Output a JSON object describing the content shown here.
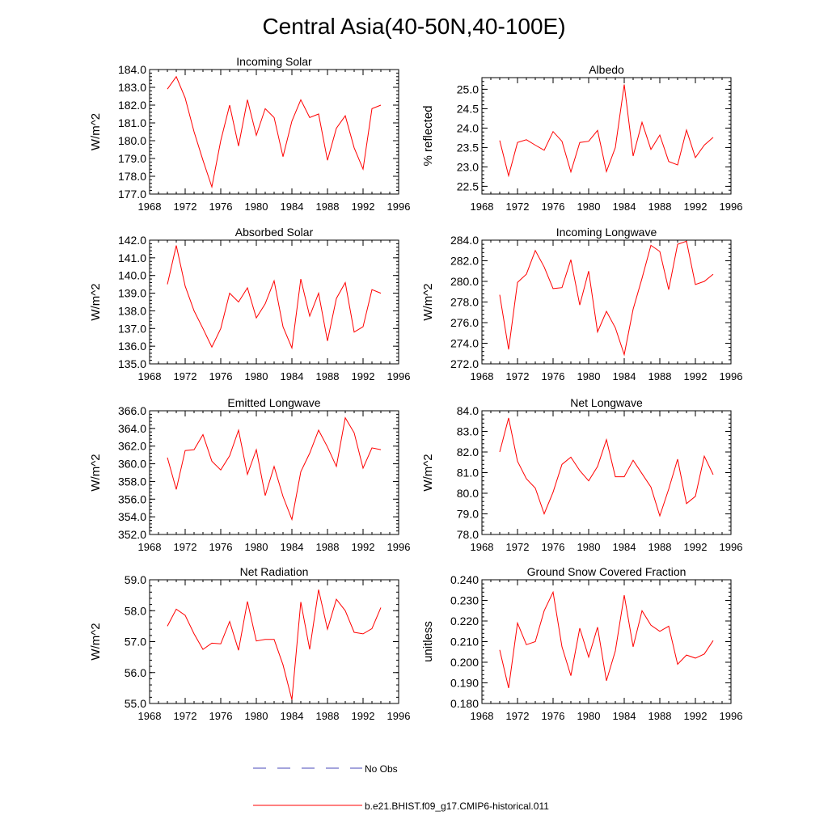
{
  "figure": {
    "title": "Central Asia(40-50N,40-100E)",
    "colors": {
      "model": "#ff0000",
      "obs": "#4a4ab8",
      "axis": "#000000"
    }
  },
  "legend": {
    "placement": "bottom-center",
    "items": [
      {
        "label": "No Obs",
        "style": "dashed",
        "color": "#4a4ab8"
      },
      {
        "label": "b.e21.BHIST.f09_g17.CMIP6-historical.011",
        "style": "solid",
        "color": "#ff0000"
      }
    ]
  },
  "chart_data": [
    {
      "type": "line",
      "title": "Incoming Solar",
      "ylabel": "W/m^2",
      "xlim": [
        1968,
        1996
      ],
      "ylim": [
        177,
        184
      ],
      "xticks": [
        1968,
        1972,
        1976,
        1980,
        1984,
        1988,
        1992,
        1996
      ],
      "yticks": [
        "177.0",
        "178.0",
        "179.0",
        "180.0",
        "181.0",
        "182.0",
        "183.0",
        "184.0"
      ],
      "x": [
        1970,
        1971,
        1972,
        1973,
        1974,
        1975,
        1976,
        1977,
        1978,
        1979,
        1980,
        1981,
        1982,
        1983,
        1984,
        1985,
        1986,
        1987,
        1988,
        1989,
        1990,
        1991,
        1992,
        1993,
        1994
      ],
      "series": [
        {
          "values": [
            182.9,
            183.6,
            182.4,
            180.5,
            178.9,
            177.4,
            180.0,
            182.0,
            179.7,
            182.3,
            180.3,
            181.8,
            181.3,
            179.1,
            181.1,
            182.3,
            181.3,
            181.5,
            178.9,
            180.7,
            181.4,
            179.6,
            178.4,
            181.8,
            182.0
          ]
        }
      ]
    },
    {
      "type": "line",
      "title": "Albedo",
      "ylabel": "% reflected",
      "xlim": [
        1968,
        1996
      ],
      "ylim": [
        22.3,
        25.3
      ],
      "xticks": [
        1968,
        1972,
        1976,
        1980,
        1984,
        1988,
        1992,
        1996
      ],
      "yticks": [
        "22.5",
        "23.0",
        "23.5",
        "24.0",
        "24.5",
        "25.0"
      ],
      "x": [
        1970,
        1971,
        1972,
        1973,
        1974,
        1975,
        1976,
        1977,
        1978,
        1979,
        1980,
        1981,
        1982,
        1983,
        1984,
        1985,
        1986,
        1987,
        1988,
        1989,
        1990,
        1991,
        1992,
        1993,
        1994
      ],
      "series": [
        {
          "values": [
            23.68,
            22.77,
            23.63,
            23.7,
            23.56,
            23.43,
            23.91,
            23.66,
            22.87,
            23.63,
            23.66,
            23.94,
            22.88,
            23.5,
            25.12,
            23.28,
            24.15,
            23.45,
            23.82,
            23.14,
            23.05,
            23.95,
            23.24,
            23.56,
            23.76
          ]
        }
      ]
    },
    {
      "type": "line",
      "title": "Absorbed Solar",
      "ylabel": "W/m^2",
      "xlim": [
        1968,
        1996
      ],
      "ylim": [
        135,
        142
      ],
      "xticks": [
        1968,
        1972,
        1976,
        1980,
        1984,
        1988,
        1992,
        1996
      ],
      "yticks": [
        "135.0",
        "136.0",
        "137.0",
        "138.0",
        "139.0",
        "140.0",
        "141.0",
        "142.0"
      ],
      "x": [
        1970,
        1971,
        1972,
        1973,
        1974,
        1975,
        1976,
        1977,
        1978,
        1979,
        1980,
        1981,
        1982,
        1983,
        1984,
        1985,
        1986,
        1987,
        1988,
        1989,
        1990,
        1991,
        1992,
        1993,
        1994
      ],
      "series": [
        {
          "values": [
            139.5,
            141.7,
            139.4,
            138.0,
            137.0,
            135.95,
            137.0,
            139.0,
            138.5,
            139.3,
            137.6,
            138.4,
            139.7,
            137.1,
            135.9,
            139.8,
            137.7,
            139.0,
            136.3,
            138.7,
            139.6,
            136.8,
            137.1,
            139.2,
            139.0
          ]
        }
      ]
    },
    {
      "type": "line",
      "title": "Incoming Longwave",
      "ylabel": "W/m^2",
      "xlim": [
        1968,
        1996
      ],
      "ylim": [
        272,
        284
      ],
      "xticks": [
        1968,
        1972,
        1976,
        1980,
        1984,
        1988,
        1992,
        1996
      ],
      "yticks": [
        "272.0",
        "274.0",
        "276.0",
        "278.0",
        "280.0",
        "282.0",
        "284.0"
      ],
      "x": [
        1970,
        1971,
        1972,
        1973,
        1974,
        1975,
        1976,
        1977,
        1978,
        1979,
        1980,
        1981,
        1982,
        1983,
        1984,
        1985,
        1986,
        1987,
        1988,
        1989,
        1990,
        1991,
        1992,
        1993,
        1994
      ],
      "series": [
        {
          "values": [
            278.7,
            273.4,
            279.9,
            280.7,
            283.0,
            281.4,
            279.3,
            279.4,
            282.1,
            277.7,
            281.0,
            275.1,
            277.1,
            275.5,
            272.9,
            277.3,
            280.3,
            283.5,
            282.9,
            279.2,
            283.6,
            283.9,
            279.7,
            280.0,
            280.7
          ]
        }
      ]
    },
    {
      "type": "line",
      "title": "Emitted Longwave",
      "ylabel": "W/m^2",
      "xlim": [
        1968,
        1996
      ],
      "ylim": [
        352,
        366
      ],
      "xticks": [
        1968,
        1972,
        1976,
        1980,
        1984,
        1988,
        1992,
        1996
      ],
      "yticks": [
        "352.0",
        "354.0",
        "356.0",
        "358.0",
        "360.0",
        "362.0",
        "364.0",
        "366.0"
      ],
      "x": [
        1970,
        1971,
        1972,
        1973,
        1974,
        1975,
        1976,
        1977,
        1978,
        1979,
        1980,
        1981,
        1982,
        1983,
        1984,
        1985,
        1986,
        1987,
        1988,
        1989,
        1990,
        1991,
        1992,
        1993,
        1994
      ],
      "series": [
        {
          "values": [
            360.7,
            357.1,
            361.5,
            361.6,
            363.3,
            360.3,
            359.3,
            360.9,
            363.8,
            358.8,
            361.6,
            356.4,
            359.7,
            356.3,
            353.7,
            359.1,
            361.2,
            363.8,
            361.9,
            359.7,
            365.2,
            363.5,
            359.5,
            361.8,
            361.6
          ]
        }
      ]
    },
    {
      "type": "line",
      "title": "Net Longwave",
      "ylabel": "W/m^2",
      "xlim": [
        1968,
        1996
      ],
      "ylim": [
        78,
        84
      ],
      "xticks": [
        1968,
        1972,
        1976,
        1980,
        1984,
        1988,
        1992,
        1996
      ],
      "yticks": [
        "78.0",
        "79.0",
        "80.0",
        "81.0",
        "82.0",
        "83.0",
        "84.0"
      ],
      "x": [
        1970,
        1971,
        1972,
        1973,
        1974,
        1975,
        1976,
        1977,
        1978,
        1979,
        1980,
        1981,
        1982,
        1983,
        1984,
        1985,
        1986,
        1987,
        1988,
        1989,
        1990,
        1991,
        1992,
        1993,
        1994
      ],
      "series": [
        {
          "values": [
            82.0,
            83.65,
            81.55,
            80.7,
            80.25,
            79.0,
            80.05,
            81.4,
            81.75,
            81.1,
            80.6,
            81.3,
            82.6,
            80.8,
            80.8,
            81.6,
            80.95,
            80.3,
            78.9,
            80.2,
            81.65,
            79.5,
            79.85,
            81.8,
            80.9
          ]
        }
      ]
    },
    {
      "type": "line",
      "title": "Net Radiation",
      "ylabel": "W/m^2",
      "xlim": [
        1968,
        1996
      ],
      "ylim": [
        55,
        59
      ],
      "xticks": [
        1968,
        1972,
        1976,
        1980,
        1984,
        1988,
        1992,
        1996
      ],
      "yticks": [
        "55.0",
        "56.0",
        "57.0",
        "58.0",
        "59.0"
      ],
      "x": [
        1970,
        1971,
        1972,
        1973,
        1974,
        1975,
        1976,
        1977,
        1978,
        1979,
        1980,
        1981,
        1982,
        1983,
        1984,
        1985,
        1986,
        1987,
        1988,
        1989,
        1990,
        1991,
        1992,
        1993,
        1994
      ],
      "series": [
        {
          "values": [
            57.5,
            58.05,
            57.85,
            57.25,
            56.75,
            56.95,
            56.93,
            57.65,
            56.72,
            58.3,
            57.02,
            57.07,
            57.07,
            56.25,
            55.12,
            58.28,
            56.75,
            58.68,
            57.4,
            58.37,
            58.0,
            57.3,
            57.25,
            57.42,
            58.1
          ]
        }
      ]
    },
    {
      "type": "line",
      "title": "Ground Snow Covered Fraction",
      "ylabel": "unitless",
      "xlim": [
        1968,
        1996
      ],
      "ylim": [
        0.18,
        0.24
      ],
      "xticks": [
        1968,
        1972,
        1976,
        1980,
        1984,
        1988,
        1992,
        1996
      ],
      "yticks": [
        "0.180",
        "0.190",
        "0.200",
        "0.210",
        "0.220",
        "0.230",
        "0.240"
      ],
      "x": [
        1970,
        1971,
        1972,
        1973,
        1974,
        1975,
        1976,
        1977,
        1978,
        1979,
        1980,
        1981,
        1982,
        1983,
        1984,
        1985,
        1986,
        1987,
        1988,
        1989,
        1990,
        1991,
        1992,
        1993,
        1994
      ],
      "series": [
        {
          "values": [
            0.206,
            0.1875,
            0.219,
            0.2085,
            0.21,
            0.225,
            0.234,
            0.2075,
            0.1935,
            0.2165,
            0.2025,
            0.217,
            0.191,
            0.2055,
            0.2325,
            0.2075,
            0.225,
            0.218,
            0.215,
            0.2175,
            0.199,
            0.2035,
            0.202,
            0.204,
            0.2105
          ]
        }
      ]
    }
  ]
}
